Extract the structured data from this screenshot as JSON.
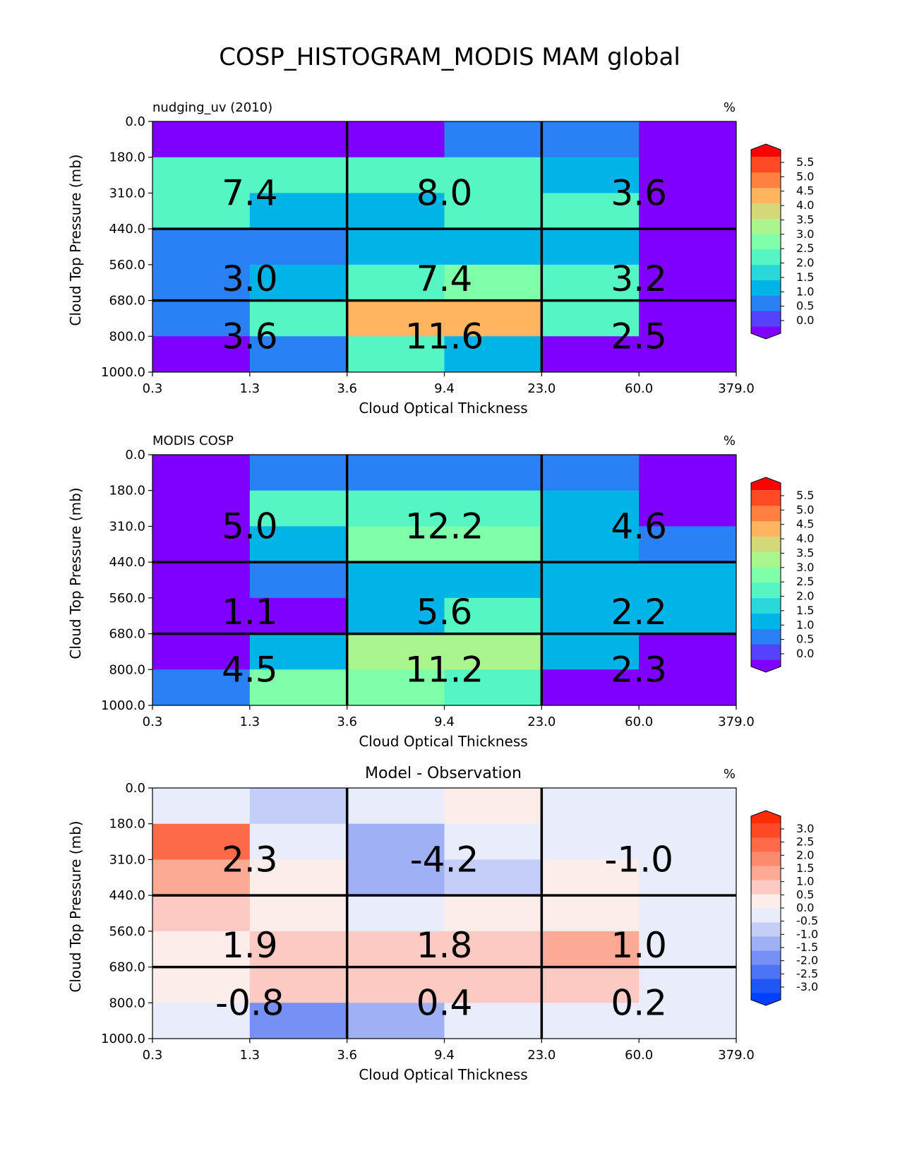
{
  "figure_title": "COSP_HISTOGRAM_MODIS MAM global",
  "chart_data": [
    {
      "type": "heatmap",
      "title": "",
      "left_label": "nudging_uv (2010)",
      "unit_label": "%",
      "xlabel": "Cloud Optical Thickness",
      "ylabel": "Cloud Top Pressure (mb)",
      "x_ticks": [
        "0.3",
        "1.3",
        "3.6",
        "9.4",
        "23.0",
        "60.0",
        "379.0"
      ],
      "y_ticks": [
        "0.0",
        "180.0",
        "310.0",
        "440.0",
        "560.0",
        "680.0",
        "800.0",
        "1000.0"
      ],
      "cells": [
        [
          -0.3,
          -0.3,
          -0.2,
          0.9,
          0.9,
          -0.3
        ],
        [
          2.3,
          2.0,
          2.0,
          2.3,
          1.4,
          -0.3
        ],
        [
          2.0,
          1.4,
          1.4,
          2.0,
          2.0,
          -0.3
        ],
        [
          0.9,
          0.9,
          1.4,
          1.4,
          1.4,
          -0.3
        ],
        [
          0.9,
          1.4,
          2.3,
          2.7,
          2.0,
          -0.3
        ],
        [
          0.9,
          2.0,
          4.1,
          4.1,
          2.3,
          -0.3
        ],
        [
          -0.3,
          0.9,
          2.0,
          1.4,
          -0.3,
          -0.3
        ]
      ],
      "box_labels": [
        [
          "7.4",
          "8.0",
          "3.6"
        ],
        [
          "3.0",
          "7.4",
          "3.2"
        ],
        [
          "3.6",
          "11.6",
          "2.5"
        ]
      ],
      "colorbar_labels": [
        "5.5",
        "5.0",
        "4.5",
        "4.0",
        "3.5",
        "3.0",
        "2.5",
        "2.0",
        "1.5",
        "1.0",
        "0.5",
        "0.0"
      ],
      "colorbar_bounds": [
        0.0,
        0.5,
        1.0,
        1.5,
        2.0,
        2.5,
        3.0,
        3.5,
        4.0,
        4.5,
        5.0,
        5.5
      ],
      "colorbar_colors": [
        "#8000ff",
        "#5442ff",
        "#2a80f5",
        "#00b4e8",
        "#2ad8dc",
        "#55f5c4",
        "#80ffaa",
        "#aaf58e",
        "#d4d87a",
        "#ffb460",
        "#ff8040",
        "#ff4a26",
        "#ff0000"
      ]
    },
    {
      "type": "heatmap",
      "title": "",
      "left_label": "MODIS COSP",
      "unit_label": "%",
      "xlabel": "Cloud Optical Thickness",
      "ylabel": "Cloud Top Pressure (mb)",
      "x_ticks": [
        "0.3",
        "1.3",
        "3.6",
        "9.4",
        "23.0",
        "60.0",
        "379.0"
      ],
      "y_ticks": [
        "0.0",
        "180.0",
        "310.0",
        "440.0",
        "560.0",
        "680.0",
        "800.0",
        "1000.0"
      ],
      "cells": [
        [
          -0.3,
          0.9,
          0.9,
          0.9,
          0.9,
          -0.3
        ],
        [
          -0.3,
          2.3,
          2.3,
          2.3,
          1.4,
          -0.3
        ],
        [
          -0.3,
          1.4,
          2.7,
          2.7,
          1.4,
          0.9
        ],
        [
          -0.3,
          0.9,
          1.4,
          1.4,
          1.4,
          1.4
        ],
        [
          -0.3,
          -0.3,
          1.4,
          2.0,
          1.4,
          1.4
        ],
        [
          -0.3,
          1.4,
          3.2,
          3.2,
          1.4,
          -0.3
        ],
        [
          0.9,
          2.7,
          2.7,
          2.0,
          -0.3,
          -0.3
        ]
      ],
      "box_labels": [
        [
          "5.0",
          "12.2",
          "4.6"
        ],
        [
          "1.1",
          "5.6",
          "2.2"
        ],
        [
          "4.5",
          "11.2",
          "2.3"
        ]
      ],
      "colorbar_labels": [
        "5.5",
        "5.0",
        "4.5",
        "4.0",
        "3.5",
        "3.0",
        "2.5",
        "2.0",
        "1.5",
        "1.0",
        "0.5",
        "0.0"
      ],
      "colorbar_bounds": [
        0.0,
        0.5,
        1.0,
        1.5,
        2.0,
        2.5,
        3.0,
        3.5,
        4.0,
        4.5,
        5.0,
        5.5
      ],
      "colorbar_colors": [
        "#8000ff",
        "#5442ff",
        "#2a80f5",
        "#00b4e8",
        "#2ad8dc",
        "#55f5c4",
        "#80ffaa",
        "#aaf58e",
        "#d4d87a",
        "#ffb460",
        "#ff8040",
        "#ff4a26",
        "#ff0000"
      ]
    },
    {
      "type": "heatmap",
      "title": "Model - Observation",
      "left_label": "",
      "unit_label": "%",
      "xlabel": "Cloud Optical Thickness",
      "ylabel": "Cloud Top Pressure (mb)",
      "x_ticks": [
        "0.3",
        "1.3",
        "3.6",
        "9.4",
        "23.0",
        "60.0",
        "379.0"
      ],
      "y_ticks": [
        "0.0",
        "180.0",
        "310.0",
        "440.0",
        "560.0",
        "680.0",
        "800.0",
        "1000.0"
      ],
      "cells": [
        [
          -0.2,
          -0.7,
          -0.2,
          0.2,
          -0.2,
          -0.2
        ],
        [
          2.2,
          -0.2,
          -1.2,
          -0.2,
          -0.2,
          -0.2
        ],
        [
          1.2,
          0.2,
          -1.2,
          -0.7,
          0.2,
          -0.2
        ],
        [
          0.7,
          0.2,
          -0.2,
          0.2,
          0.2,
          -0.2
        ],
        [
          0.2,
          0.7,
          0.7,
          0.7,
          1.2,
          -0.2
        ],
        [
          0.2,
          0.7,
          0.7,
          0.7,
          0.7,
          -0.2
        ],
        [
          -0.2,
          -1.7,
          -1.2,
          -0.2,
          -0.2,
          -0.2
        ]
      ],
      "box_labels": [
        [
          "2.3",
          "-4.2",
          "-1.0"
        ],
        [
          "1.9",
          "1.8",
          "1.0"
        ],
        [
          "-0.8",
          "0.4",
          "0.2"
        ]
      ],
      "colorbar_labels": [
        "3.0",
        "2.5",
        "2.0",
        "1.5",
        "1.0",
        "0.5",
        "0.0",
        "-0.5",
        "-1.0",
        "-1.5",
        "-2.0",
        "-2.5",
        "-3.0"
      ],
      "colorbar_bounds": [
        -3.0,
        -2.5,
        -2.0,
        -1.5,
        -1.0,
        -0.5,
        0.0,
        0.5,
        1.0,
        1.5,
        2.0,
        2.5,
        3.0
      ],
      "colorbar_colors": [
        "#0040ff",
        "#2056f5",
        "#4c74f5",
        "#7790f5",
        "#9fb0f5",
        "#c4cef8",
        "#e8ecfb",
        "#fcecea",
        "#fccac2",
        "#fcaa96",
        "#fc8a6c",
        "#fd6a4a",
        "#ff4826",
        "#ff2c00"
      ]
    }
  ]
}
